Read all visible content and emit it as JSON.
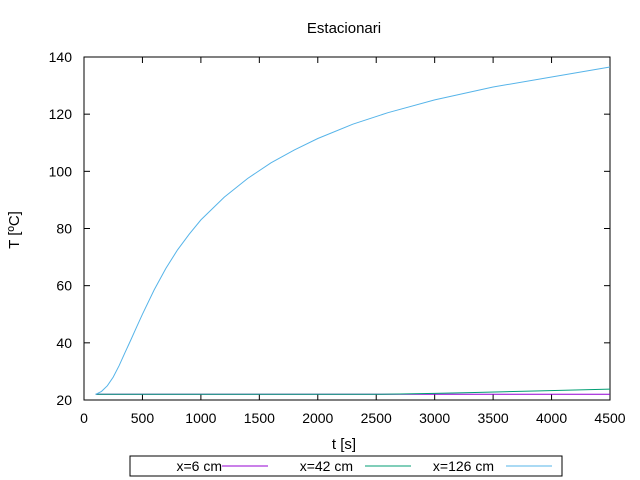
{
  "chart_data": {
    "type": "line",
    "title": "Estacionari",
    "xlabel": "t [s]",
    "ylabel": "T [ºC]",
    "xlim": [
      0,
      4500
    ],
    "ylim": [
      20,
      140
    ],
    "xticks": [
      0,
      500,
      1000,
      1500,
      2000,
      2500,
      3000,
      3500,
      4000,
      4500
    ],
    "yticks": [
      20,
      40,
      60,
      80,
      100,
      120,
      140
    ],
    "grid": false,
    "legend_position": "bottom",
    "series": [
      {
        "name": "x=6 cm",
        "color": "#9400d3",
        "x": [
          100,
          500,
          1000,
          1500,
          2000,
          2500,
          3000,
          3500,
          4000,
          4500
        ],
        "y": [
          22,
          22,
          22,
          22,
          22,
          22,
          22,
          22,
          22,
          22
        ]
      },
      {
        "name": "x=42 cm",
        "color": "#009e73",
        "x": [
          100,
          500,
          1000,
          1500,
          2000,
          2500,
          2700,
          3000,
          3300,
          3600,
          3900,
          4200,
          4500
        ],
        "y": [
          22,
          22,
          22,
          22,
          22,
          22,
          22.1,
          22.3,
          22.6,
          22.9,
          23.2,
          23.5,
          23.8
        ]
      },
      {
        "name": "x=126 cm",
        "color": "#56b4e9",
        "x": [
          100,
          150,
          200,
          250,
          300,
          350,
          400,
          450,
          500,
          600,
          700,
          800,
          900,
          1000,
          1200,
          1400,
          1600,
          1800,
          2000,
          2300,
          2600,
          3000,
          3500,
          4000,
          4500
        ],
        "y": [
          22,
          23,
          25,
          28,
          32,
          36.5,
          41,
          45.5,
          50,
          58.5,
          66,
          72.5,
          78,
          83,
          91,
          97.5,
          103,
          107.5,
          111.5,
          116.5,
          120.5,
          125,
          129.5,
          133,
          136.5
        ]
      }
    ]
  }
}
